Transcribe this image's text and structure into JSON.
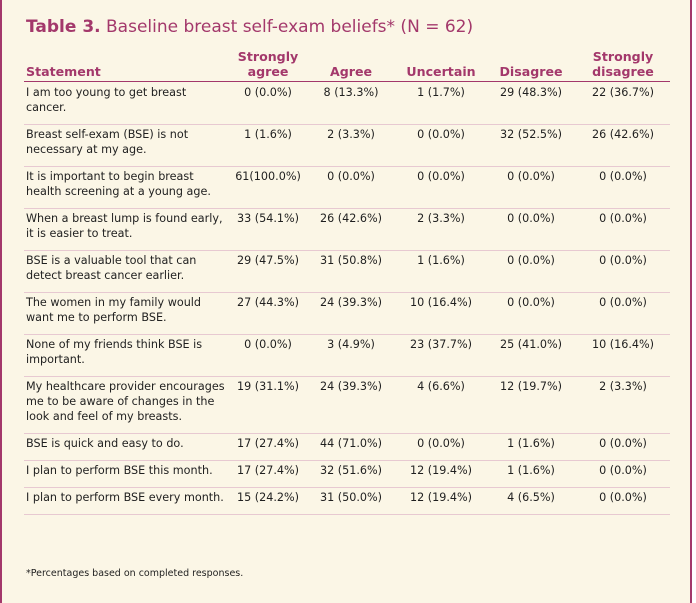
{
  "title": {
    "number": "Table 3.",
    "text": "Baseline breast self-exam beliefs* (N = 62)"
  },
  "headers": {
    "statement": "Statement",
    "strongly_agree": [
      "Strongly",
      "agree"
    ],
    "agree": "Agree",
    "uncertain": "Uncertain",
    "disagree": "Disagree",
    "strongly_disagree": [
      "Strongly",
      "disagree"
    ]
  },
  "rows": [
    {
      "statement": "I am too young to get breast cancer.",
      "values": [
        "0 (0.0%)",
        "8 (13.3%)",
        "1 (1.7%)",
        "29 (48.3%)",
        "22 (36.7%)"
      ]
    },
    {
      "statement": "Breast self-exam (BSE) is not necessary at my age.",
      "values": [
        "1 (1.6%)",
        "2 (3.3%)",
        "0 (0.0%)",
        "32 (52.5%)",
        "26 (42.6%)"
      ]
    },
    {
      "statement": "It is important to begin breast health screening at a young age.",
      "values": [
        "61(100.0%)",
        "0 (0.0%)",
        "0 (0.0%)",
        "0 (0.0%)",
        "0 (0.0%)"
      ]
    },
    {
      "statement": "When a breast lump is found early, it is easier to treat.",
      "values": [
        "33 (54.1%)",
        "26 (42.6%)",
        "2 (3.3%)",
        "0 (0.0%)",
        "0 (0.0%)"
      ]
    },
    {
      "statement": "BSE is a valuable tool that can detect breast cancer earlier.",
      "values": [
        "29 (47.5%)",
        "31 (50.8%)",
        "1 (1.6%)",
        "0 (0.0%)",
        "0 (0.0%)"
      ]
    },
    {
      "statement": "The women in my family would want me to perform BSE.",
      "values": [
        "27 (44.3%)",
        "24 (39.3%)",
        "10 (16.4%)",
        "0 (0.0%)",
        "0 (0.0%)"
      ]
    },
    {
      "statement": "None of my friends think BSE is important.",
      "values": [
        "0 (0.0%)",
        "3 (4.9%)",
        "23 (37.7%)",
        "25 (41.0%)",
        "10 (16.4%)"
      ]
    },
    {
      "statement": "My healthcare provider encourages me to be aware of changes in the look and feel of my breasts.",
      "values": [
        "19 (31.1%)",
        "24 (39.3%)",
        "4 (6.6%)",
        "12 (19.7%)",
        "2 (3.3%)"
      ]
    },
    {
      "statement": "BSE is quick and easy to do.",
      "values": [
        "17 (27.4%)",
        "44 (71.0%)",
        "0 (0.0%)",
        "1 (1.6%)",
        "0 (0.0%)"
      ]
    },
    {
      "statement": "I plan to perform BSE this month.",
      "values": [
        "17 (27.4%)",
        "32 (51.6%)",
        "12 (19.4%)",
        "1 (1.6%)",
        "0 (0.0%)"
      ]
    },
    {
      "statement": "I plan to perform BSE every month.",
      "values": [
        "15 (24.2%)",
        "31 (50.0%)",
        "12 (19.4%)",
        "4 (6.5%)",
        "0 (0.0%)"
      ]
    }
  ],
  "footnote": "*Percentages based on completed responses.",
  "colors": {
    "accent": "#a3386b",
    "background": "#fbf6e6",
    "rule": "#e7c9d1"
  }
}
